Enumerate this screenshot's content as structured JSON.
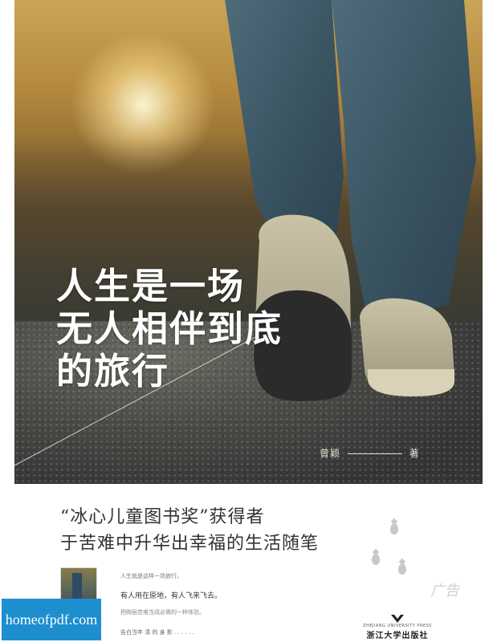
{
  "cover": {
    "title_lines": [
      "人生是一场",
      "无人相伴到底",
      "的旅行"
    ],
    "author": "曾颖",
    "author_suffix": "著",
    "award": "“冰心儿童图书奖”获得者",
    "tagline": "于苦难中升华出幸福的生活随笔",
    "ad_label": "广告",
    "quotes": [
      "人生就是这样一场旅行。",
      "有人用在原地，有人飞来飞去。",
      "把绚丽苦难当成必需的一种体验。",
      "告白当年 清 的 身 影 . . . . . ."
    ],
    "publisher_en": "ZHEJIANG UNIVERSITY PRESS",
    "publisher_cn": "浙江大学出版社",
    "watermark": "homeofpdf.com"
  },
  "colors": {
    "title": "#ffffff",
    "watermark_bg": "#1d8fcf",
    "text": "#333333"
  }
}
